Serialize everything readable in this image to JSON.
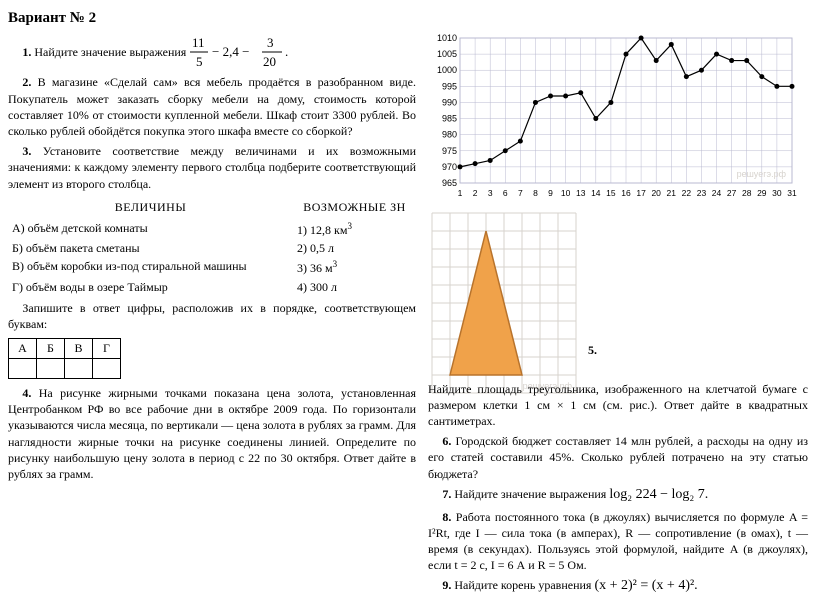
{
  "title": "Вариант № 2",
  "left": {
    "p1_label": "1.",
    "p1_text": "Найдите значение выражения",
    "p1_formula_a_num": "11",
    "p1_formula_a_den": "5",
    "p1_formula_mid": "− 2,4 −",
    "p1_formula_b_num": "3",
    "p1_formula_b_den": "20",
    "p1_formula_dot": ".",
    "p2_label": "2.",
    "p2_text": "В магазине «Сделай сам» вся мебель продаётся в разобранном виде. Покупатель может заказать сборку мебели на дому, стоимость которой составляет 10% от стоимости купленной мебели. Шкаф стоит 3300 рублей. Во сколько рублей обойдётся покупка этого шкафа вместе со сборкой?",
    "p3_label": "3.",
    "p3_text": "Установите соответствие между величинами и их возможными значениями: к каждому элементу первого столбца подберите соответствующий элемент из второго столбца.",
    "pair_head_left": "ВЕЛИЧИНЫ",
    "pair_head_right": "ВОЗМОЖНЫЕ ЗН",
    "pair_rows": [
      {
        "l": "А) объём детской комнаты",
        "r": "1) 12,8 км³"
      },
      {
        "l": "Б) объём пакета сметаны",
        "r": "2) 0,5 л"
      },
      {
        "l": "В) объём коробки из-под стиральной машины",
        "r": "3) 36 м³"
      },
      {
        "l": "Г) объём воды в озере Таймыр",
        "r": "4) 300 л"
      }
    ],
    "p3_after": "Запишите в ответ цифры, расположив их в порядке, соответствующем буквам:",
    "ans_headers": [
      "А",
      "Б",
      "В",
      "Г"
    ],
    "p4_label": "4.",
    "p4_text": "На рисунке жирными точками показана цена золота, установленная Центробанком РФ во все рабочие дни в октябре 2009 года. По горизонтали указываются числа месяца, по вертикали — цена золота в рублях за грамм. Для наглядности жирные точки на рисунке соединены линией. Определите по рисунку наибольшую цену золота в период с 22 по 30 октября. Ответ дайте в рублях за грамм."
  },
  "right": {
    "chart": {
      "x_ticks": [
        "1",
        "2",
        "3",
        "6",
        "7",
        "8",
        "9",
        "10",
        "13",
        "14",
        "15",
        "16",
        "17",
        "20",
        "21",
        "22",
        "23",
        "24",
        "27",
        "28",
        "29",
        "30",
        "31"
      ],
      "y_ticks": [
        "965",
        "970",
        "975",
        "980",
        "985",
        "990",
        "995",
        "1000",
        "1005",
        "1010"
      ],
      "y_min": 965,
      "y_max": 1010,
      "values": [
        970,
        971,
        972,
        975,
        978,
        990,
        992,
        992,
        993,
        985,
        990,
        1005,
        1010,
        1003,
        1008,
        998,
        1000,
        1005,
        1003,
        1003,
        998,
        995,
        995
      ],
      "grid_color": "#b9b9d0",
      "line_color": "#000000",
      "bg_color": "#ffffff",
      "watermark": "решуегэ.рф"
    },
    "triangle": {
      "cols": 8,
      "rows": 10,
      "fill": "#f0a24a",
      "stroke": "#b8732c",
      "grid": "#d7d3ce",
      "watermark": "решуегэ.рф",
      "pts": [
        [
          1,
          9
        ],
        [
          3,
          1
        ],
        [
          5,
          9
        ]
      ]
    },
    "p5_label": "5.",
    "p5_text": "Найдите площадь треугольника, изображенного на клетчатой бумаге с размером клетки 1 см × 1 см (см. рис.). Ответ дайте в квадратных сантиметрах.",
    "p6_label": "6.",
    "p6_text": "Городской бюджет составляет 14 млн рублей, а расходы на одну из его статей составили 45%. Сколько рублей потрачено на эту статью бюджета?",
    "p7_label": "7.",
    "p7_text": "Найдите значение выражения",
    "p7_formula": "log₂ 224 − log₂ 7.",
    "p8_label": "8.",
    "p8_text": "Работа постоянного тока (в джоулях) вычисляется по формуле A = I²Rt, где I — сила тока (в амперах), R — сопротивление (в омах), t — время (в секундах). Пользуясь этой формулой, найдите A (в джоулях), если t = 2 с, I = 6 А и R = 5 Ом.",
    "p9_label": "9.",
    "p9_text": "Найдите корень уравнения",
    "p9_formula": "(x + 2)² = (x + 4)²."
  }
}
